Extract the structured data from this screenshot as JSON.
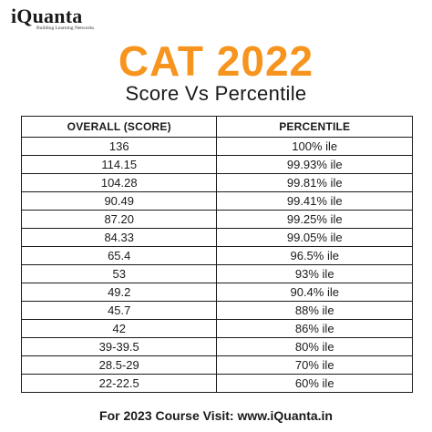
{
  "logo": {
    "name": "iQuanta",
    "tagline": "Building Learning Networks"
  },
  "title": "CAT 2022",
  "subtitle": "Score Vs Percentile",
  "table": {
    "headers": [
      "OVERALL (SCORE)",
      "PERCENTILE"
    ],
    "rows": [
      [
        "136",
        "100% ile"
      ],
      [
        "114.15",
        "99.93% ile"
      ],
      [
        "104.28",
        "99.81% ile"
      ],
      [
        "90.49",
        "99.41% ile"
      ],
      [
        "87.20",
        "99.25% ile"
      ],
      [
        "84.33",
        "99.05% ile"
      ],
      [
        "65.4",
        "96.5% ile"
      ],
      [
        "53",
        "93% ile"
      ],
      [
        "49.2",
        "90.4% ile"
      ],
      [
        "45.7",
        "88% ile"
      ],
      [
        "42",
        "86% ile"
      ],
      [
        "39-39.5",
        "80% ile"
      ],
      [
        "28.5-29",
        "70% ile"
      ],
      [
        "22-22.5",
        "60% ile"
      ]
    ]
  },
  "footer": "For 2023 Course Visit: www.iQuanta.in",
  "colors": {
    "accent": "#f7941d",
    "text": "#1a1a1a"
  }
}
